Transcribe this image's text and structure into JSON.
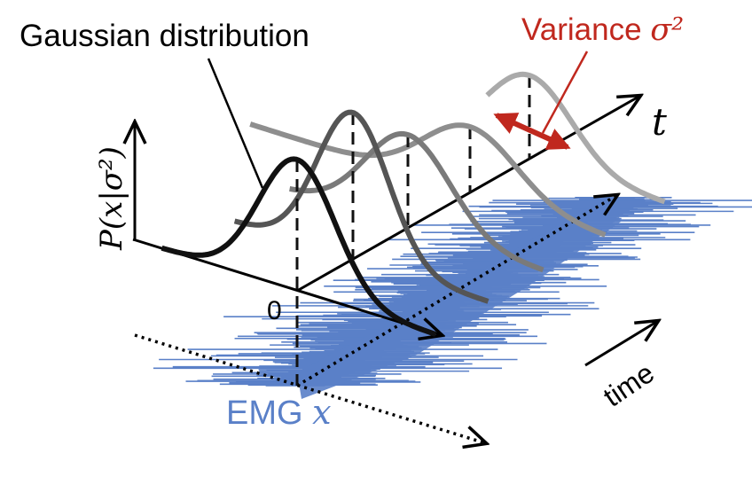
{
  "labels": {
    "gaussian": "Gaussian distribution",
    "variance": "Variance ",
    "sigma_sq": "σ²",
    "y_axis": "P(x|σ²)",
    "t_axis": "t",
    "zero": "0",
    "emg": "EMG ",
    "emg_var": "x",
    "time": "time"
  },
  "colors": {
    "variance": "#c0281e",
    "emg": "#5a80c8",
    "curves": [
      "#111111",
      "#555555",
      "#7a7a7a",
      "#8e8e8e",
      "#aaaaaa"
    ]
  }
}
